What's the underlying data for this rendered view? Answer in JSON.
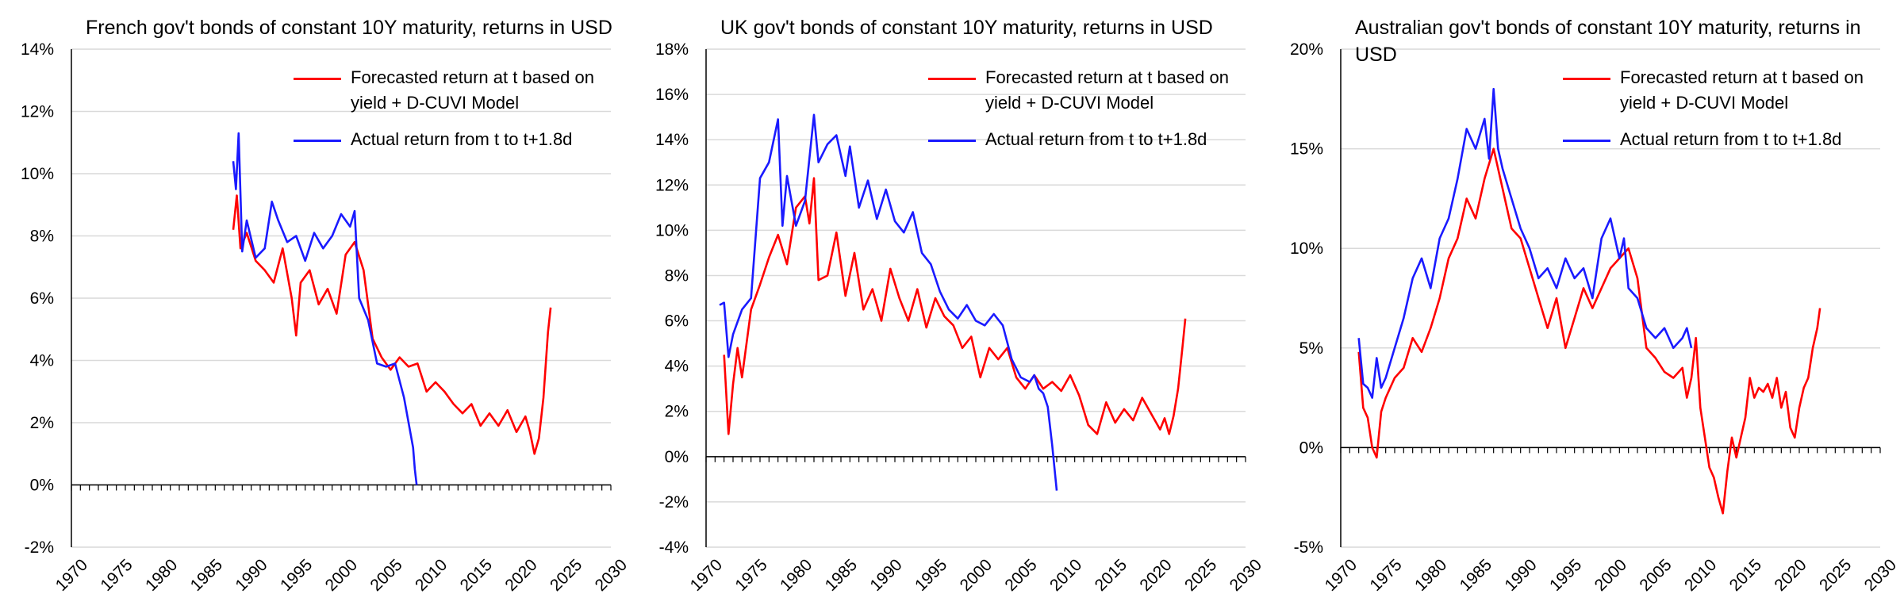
{
  "colors": {
    "forecast": "#ff0000",
    "actual": "#1a1aff",
    "grid": "#d9d9d9",
    "axis": "#000000"
  },
  "legend": {
    "forecast": "Forecasted return at t based on yield + D-CUVI Model",
    "actual": "Actual return from t to t+1.8d"
  },
  "chart_data": [
    {
      "type": "line",
      "title": "French gov't bonds of constant 10Y maturity, returns in USD",
      "xlabel": "",
      "ylabel": "",
      "xlim": [
        1970,
        2030
      ],
      "ylim": [
        -2,
        14
      ],
      "yticks": [
        -2,
        0,
        2,
        4,
        6,
        8,
        10,
        12,
        14
      ],
      "ytick_labels": [
        "-2%",
        "0%",
        "2%",
        "4%",
        "6%",
        "8%",
        "10%",
        "12%",
        "14%"
      ],
      "xticks": [
        1970,
        1975,
        1980,
        1985,
        1990,
        1995,
        2000,
        2005,
        2010,
        2015,
        2020,
        2025,
        2030
      ],
      "xtick_labels": [
        "1970",
        "1975",
        "1980",
        "1985",
        "1990",
        "1995",
        "2000",
        "2005",
        "2010",
        "2015",
        "2020",
        "2025",
        "2030"
      ],
      "legend_position": "top-right",
      "series": [
        {
          "name": "Forecasted return at t based on yield + D-CUVI Model",
          "color": "#ff0000",
          "x": [
            1988.0,
            1988.4,
            1988.8,
            1989.5,
            1990.5,
            1991.5,
            1992.5,
            1993.5,
            1994.5,
            1995.0,
            1995.5,
            1996.5,
            1997.5,
            1998.5,
            1999.5,
            2000.5,
            2001.5,
            2002.5,
            2003.5,
            2004.5,
            2005.5,
            2006.5,
            2007.5,
            2008.5,
            2009.5,
            2010.5,
            2011.5,
            2012.5,
            2013.5,
            2014.5,
            2015.5,
            2016.5,
            2017.5,
            2018.5,
            2019.5,
            2020.5,
            2021.0,
            2021.5,
            2022.0,
            2022.5,
            2023.0,
            2023.3
          ],
          "values": [
            8.2,
            9.3,
            7.6,
            8.1,
            7.2,
            6.9,
            6.5,
            7.6,
            6.0,
            4.8,
            6.5,
            6.9,
            5.8,
            6.3,
            5.5,
            7.4,
            7.8,
            6.9,
            4.7,
            4.1,
            3.7,
            4.1,
            3.8,
            3.9,
            3.0,
            3.3,
            3.0,
            2.6,
            2.3,
            2.6,
            1.9,
            2.3,
            1.9,
            2.4,
            1.7,
            2.2,
            1.7,
            1.0,
            1.5,
            2.8,
            4.9,
            5.7
          ]
        },
        {
          "name": "Actual return from t to t+1.8d",
          "color": "#1a1aff",
          "x": [
            1988.0,
            1988.3,
            1988.6,
            1989.0,
            1989.5,
            1990.5,
            1991.5,
            1992.3,
            1993.0,
            1994.0,
            1995.0,
            1996.0,
            1997.0,
            1998.0,
            1999.0,
            2000.0,
            2001.0,
            2001.5,
            2002.0,
            2003.0,
            2004.0,
            2005.0,
            2006.0,
            2007.0,
            2007.5,
            2008.0,
            2008.2,
            2008.4
          ],
          "values": [
            10.4,
            9.5,
            11.3,
            7.5,
            8.5,
            7.3,
            7.6,
            9.1,
            8.5,
            7.8,
            8.0,
            7.2,
            8.1,
            7.6,
            8.0,
            8.7,
            8.3,
            8.8,
            6.0,
            5.3,
            3.9,
            3.8,
            3.9,
            2.8,
            2.0,
            1.2,
            0.5,
            0.0
          ]
        }
      ]
    },
    {
      "type": "line",
      "title": "UK gov't bonds of constant 10Y maturity, returns in USD",
      "xlabel": "",
      "ylabel": "",
      "xlim": [
        1970,
        2030
      ],
      "ylim": [
        -4,
        18
      ],
      "yticks": [
        -4,
        -2,
        0,
        2,
        4,
        6,
        8,
        10,
        12,
        14,
        16,
        18
      ],
      "ytick_labels": [
        "-4%",
        "-2%",
        "0%",
        "2%",
        "4%",
        "6%",
        "8%",
        "10%",
        "12%",
        "14%",
        "16%",
        "18%"
      ],
      "xticks": [
        1970,
        1975,
        1980,
        1985,
        1990,
        1995,
        2000,
        2005,
        2010,
        2015,
        2020,
        2025,
        2030
      ],
      "xtick_labels": [
        "1970",
        "1975",
        "1980",
        "1985",
        "1990",
        "1995",
        "2000",
        "2005",
        "2010",
        "2015",
        "2020",
        "2025",
        "2030"
      ],
      "legend_position": "top-right",
      "series": [
        {
          "name": "Forecasted return at t based on yield + D-CUVI Model",
          "color": "#ff0000",
          "x": [
            1972.0,
            1972.5,
            1973.0,
            1973.5,
            1974.0,
            1975.0,
            1976.0,
            1977.0,
            1978.0,
            1979.0,
            1980.0,
            1981.0,
            1981.5,
            1982.0,
            1982.5,
            1983.5,
            1984.5,
            1985.5,
            1986.5,
            1987.5,
            1988.5,
            1989.5,
            1990.5,
            1991.5,
            1992.5,
            1993.5,
            1994.5,
            1995.5,
            1996.5,
            1997.5,
            1998.5,
            1999.5,
            2000.5,
            2001.5,
            2002.5,
            2003.5,
            2004.5,
            2005.5,
            2006.5,
            2007.5,
            2008.5,
            2009.5,
            2010.5,
            2011.5,
            2012.5,
            2013.5,
            2014.5,
            2015.5,
            2016.5,
            2017.5,
            2018.5,
            2019.5,
            2020.5,
            2021.0,
            2021.5,
            2022.0,
            2022.5,
            2023.0,
            2023.3
          ],
          "values": [
            4.5,
            1.0,
            3.2,
            4.8,
            3.5,
            6.5,
            7.6,
            8.8,
            9.8,
            8.5,
            11.0,
            11.5,
            10.3,
            12.3,
            7.8,
            8.0,
            9.9,
            7.1,
            9.0,
            6.5,
            7.4,
            6.0,
            8.3,
            7.0,
            6.0,
            7.4,
            5.7,
            7.0,
            6.2,
            5.8,
            4.8,
            5.3,
            3.5,
            4.8,
            4.3,
            4.8,
            3.5,
            3.0,
            3.6,
            3.0,
            3.3,
            2.9,
            3.6,
            2.7,
            1.4,
            1.0,
            2.4,
            1.5,
            2.1,
            1.6,
            2.6,
            1.9,
            1.2,
            1.7,
            1.0,
            1.8,
            3.0,
            4.9,
            6.1
          ]
        },
        {
          "name": "Actual return from t to t+1.8d",
          "color": "#1a1aff",
          "x": [
            1971.5,
            1972.0,
            1972.5,
            1973.0,
            1974.0,
            1975.0,
            1976.0,
            1977.0,
            1978.0,
            1978.5,
            1979.0,
            1980.0,
            1981.0,
            1982.0,
            1982.5,
            1983.5,
            1984.5,
            1985.5,
            1986.0,
            1987.0,
            1988.0,
            1989.0,
            1990.0,
            1991.0,
            1992.0,
            1993.0,
            1994.0,
            1995.0,
            1996.0,
            1997.0,
            1998.0,
            1999.0,
            2000.0,
            2001.0,
            2002.0,
            2003.0,
            2004.0,
            2005.0,
            2006.0,
            2006.5,
            2007.0,
            2007.5,
            2008.0,
            2008.5,
            2009.0
          ],
          "values": [
            6.7,
            6.8,
            4.4,
            5.4,
            6.5,
            7.0,
            12.3,
            13.0,
            14.9,
            10.2,
            12.4,
            10.2,
            11.3,
            15.1,
            13.0,
            13.8,
            14.2,
            12.4,
            13.7,
            11.0,
            12.2,
            10.5,
            11.8,
            10.4,
            9.9,
            10.8,
            9.0,
            8.5,
            7.3,
            6.5,
            6.1,
            6.7,
            6.0,
            5.8,
            6.3,
            5.8,
            4.3,
            3.5,
            3.3,
            3.6,
            3.0,
            2.8,
            2.2,
            0.5,
            -1.5
          ]
        }
      ]
    },
    {
      "type": "line",
      "title": "Australian gov't bonds of constant 10Y maturity, returns in USD",
      "xlabel": "",
      "ylabel": "",
      "xlim": [
        1970,
        2030
      ],
      "ylim": [
        -5,
        20
      ],
      "yticks": [
        -5,
        0,
        5,
        10,
        15,
        20
      ],
      "ytick_labels": [
        "-5%",
        "0%",
        "5%",
        "10%",
        "15%",
        "20%"
      ],
      "xticks": [
        1970,
        1975,
        1980,
        1985,
        1990,
        1995,
        2000,
        2005,
        2010,
        2015,
        2020,
        2025,
        2030
      ],
      "xtick_labels": [
        "1970",
        "1975",
        "1980",
        "1985",
        "1990",
        "1995",
        "2000",
        "2005",
        "2010",
        "2015",
        "2020",
        "2025",
        "2030"
      ],
      "legend_position": "top-right",
      "series": [
        {
          "name": "Forecasted return at t based on yield + D-CUVI Model",
          "color": "#ff0000",
          "x": [
            1972.0,
            1972.5,
            1973.0,
            1973.5,
            1974.0,
            1974.5,
            1975.0,
            1976.0,
            1977.0,
            1978.0,
            1979.0,
            1980.0,
            1981.0,
            1982.0,
            1983.0,
            1984.0,
            1985.0,
            1986.0,
            1987.0,
            1988.0,
            1989.0,
            1990.0,
            1991.0,
            1992.0,
            1993.0,
            1994.0,
            1995.0,
            1996.0,
            1997.0,
            1998.0,
            1999.0,
            2000.0,
            2001.0,
            2002.0,
            2003.0,
            2004.0,
            2005.0,
            2006.0,
            2007.0,
            2008.0,
            2008.5,
            2009.0,
            2009.5,
            2010.0,
            2010.5,
            2011.0,
            2011.5,
            2012.0,
            2012.5,
            2013.0,
            2013.5,
            2014.0,
            2014.5,
            2015.0,
            2015.5,
            2016.0,
            2016.5,
            2017.0,
            2017.5,
            2018.0,
            2018.5,
            2019.0,
            2019.5,
            2020.0,
            2020.5,
            2021.0,
            2021.5,
            2022.0,
            2022.5,
            2023.0,
            2023.3
          ],
          "values": [
            4.8,
            2.0,
            1.5,
            0.0,
            -0.5,
            1.8,
            2.5,
            3.5,
            4.0,
            5.5,
            4.8,
            6.0,
            7.5,
            9.5,
            10.5,
            12.5,
            11.5,
            13.5,
            15.0,
            13.0,
            11.0,
            10.5,
            9.0,
            7.5,
            6.0,
            7.5,
            5.0,
            6.5,
            8.0,
            7.0,
            8.0,
            9.0,
            9.5,
            10.0,
            8.5,
            5.0,
            4.5,
            3.8,
            3.5,
            4.0,
            2.5,
            3.5,
            5.5,
            2.0,
            0.5,
            -1.0,
            -1.5,
            -2.5,
            -3.3,
            -1.2,
            0.5,
            -0.5,
            0.5,
            1.5,
            3.5,
            2.5,
            3.0,
            2.8,
            3.2,
            2.5,
            3.5,
            2.0,
            2.8,
            1.0,
            0.5,
            2.0,
            3.0,
            3.5,
            5.0,
            6.0,
            7.0
          ]
        },
        {
          "name": "Actual return from t to t+1.8d",
          "color": "#1a1aff",
          "x": [
            1972.0,
            1972.5,
            1973.0,
            1973.5,
            1974.0,
            1974.5,
            1975.0,
            1976.0,
            1977.0,
            1978.0,
            1979.0,
            1980.0,
            1981.0,
            1982.0,
            1983.0,
            1984.0,
            1985.0,
            1986.0,
            1986.5,
            1987.0,
            1987.5,
            1988.0,
            1989.0,
            1990.0,
            1991.0,
            1992.0,
            1993.0,
            1994.0,
            1995.0,
            1996.0,
            1997.0,
            1998.0,
            1999.0,
            2000.0,
            2001.0,
            2001.5,
            2002.0,
            2003.0,
            2004.0,
            2005.0,
            2006.0,
            2007.0,
            2008.0,
            2008.5,
            2009.0
          ],
          "values": [
            5.5,
            3.2,
            3.0,
            2.5,
            4.5,
            3.0,
            3.5,
            5.0,
            6.5,
            8.5,
            9.5,
            8.0,
            10.5,
            11.5,
            13.5,
            16.0,
            15.0,
            16.5,
            14.5,
            18.0,
            15.0,
            14.0,
            12.5,
            11.0,
            10.0,
            8.5,
            9.0,
            8.0,
            9.5,
            8.5,
            9.0,
            7.5,
            10.5,
            11.5,
            9.5,
            10.5,
            8.0,
            7.5,
            6.0,
            5.5,
            6.0,
            5.0,
            5.5,
            6.0,
            5.0
          ]
        }
      ]
    }
  ]
}
